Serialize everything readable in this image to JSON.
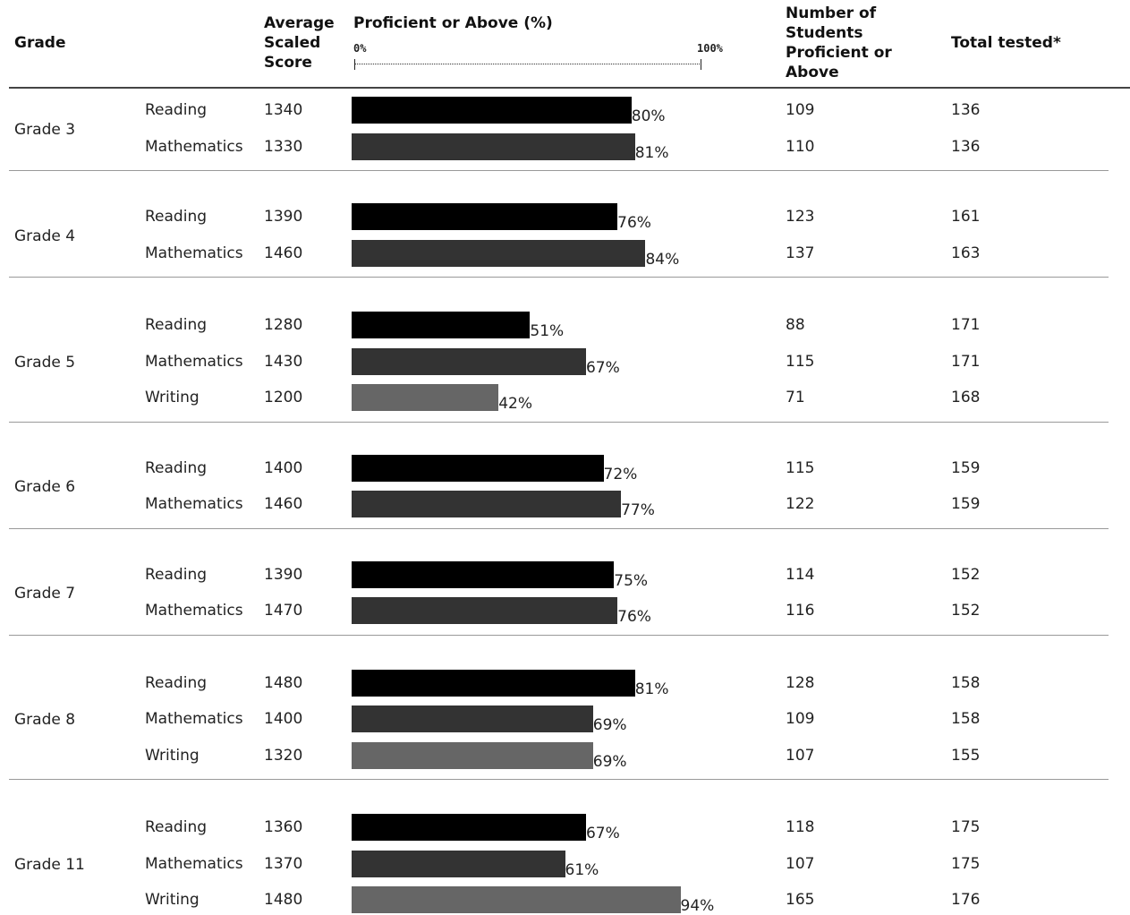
{
  "headers": {
    "grade": "Grade",
    "avg_score": "Average Scaled Score",
    "proficient": "Proficient or Above (%)",
    "scale_min": "0%",
    "scale_max": "100%",
    "num_proficient": "Number of Students Proficient or Above",
    "total_tested": "Total tested*"
  },
  "colors": {
    "Reading": "#000000",
    "Mathematics": "#333333",
    "Writing": "#666666",
    "separator": "#999999"
  },
  "chart_data": {
    "type": "bar",
    "orientation": "horizontal",
    "xlim": [
      0,
      100
    ],
    "groups": [
      {
        "grade": "Grade 3",
        "rows": [
          {
            "subject": "Reading",
            "avg": "1340",
            "pct": 80,
            "pct_label": "80%",
            "num": "109",
            "total": "136"
          },
          {
            "subject": "Mathematics",
            "avg": "1330",
            "pct": 81,
            "pct_label": "81%",
            "num": "110",
            "total": "136"
          }
        ]
      },
      {
        "grade": "Grade 4",
        "rows": [
          {
            "subject": "Reading",
            "avg": "1390",
            "pct": 76,
            "pct_label": "76%",
            "num": "123",
            "total": "161"
          },
          {
            "subject": "Mathematics",
            "avg": "1460",
            "pct": 84,
            "pct_label": "84%",
            "num": "137",
            "total": "163"
          }
        ]
      },
      {
        "grade": "Grade 5",
        "rows": [
          {
            "subject": "Reading",
            "avg": "1280",
            "pct": 51,
            "pct_label": "51%",
            "num": "88",
            "total": "171"
          },
          {
            "subject": "Mathematics",
            "avg": "1430",
            "pct": 67,
            "pct_label": "67%",
            "num": "115",
            "total": "171"
          },
          {
            "subject": "Writing",
            "avg": "1200",
            "pct": 42,
            "pct_label": "42%",
            "num": "71",
            "total": "168"
          }
        ]
      },
      {
        "grade": "Grade 6",
        "rows": [
          {
            "subject": "Reading",
            "avg": "1400",
            "pct": 72,
            "pct_label": "72%",
            "num": "115",
            "total": "159"
          },
          {
            "subject": "Mathematics",
            "avg": "1460",
            "pct": 77,
            "pct_label": "77%",
            "num": "122",
            "total": "159"
          }
        ]
      },
      {
        "grade": "Grade 7",
        "rows": [
          {
            "subject": "Reading",
            "avg": "1390",
            "pct": 75,
            "pct_label": "75%",
            "num": "114",
            "total": "152"
          },
          {
            "subject": "Mathematics",
            "avg": "1470",
            "pct": 76,
            "pct_label": "76%",
            "num": "116",
            "total": "152"
          }
        ]
      },
      {
        "grade": "Grade 8",
        "rows": [
          {
            "subject": "Reading",
            "avg": "1480",
            "pct": 81,
            "pct_label": "81%",
            "num": "128",
            "total": "158"
          },
          {
            "subject": "Mathematics",
            "avg": "1400",
            "pct": 69,
            "pct_label": "69%",
            "num": "109",
            "total": "158"
          },
          {
            "subject": "Writing",
            "avg": "1320",
            "pct": 69,
            "pct_label": "69%",
            "num": "107",
            "total": "155"
          }
        ]
      },
      {
        "grade": "Grade 11",
        "rows": [
          {
            "subject": "Reading",
            "avg": "1360",
            "pct": 67,
            "pct_label": "67%",
            "num": "118",
            "total": "175"
          },
          {
            "subject": "Mathematics",
            "avg": "1370",
            "pct": 61,
            "pct_label": "61%",
            "num": "107",
            "total": "175"
          },
          {
            "subject": "Writing",
            "avg": "1480",
            "pct": 94,
            "pct_label": "94%",
            "num": "165",
            "total": "176"
          }
        ]
      }
    ]
  }
}
